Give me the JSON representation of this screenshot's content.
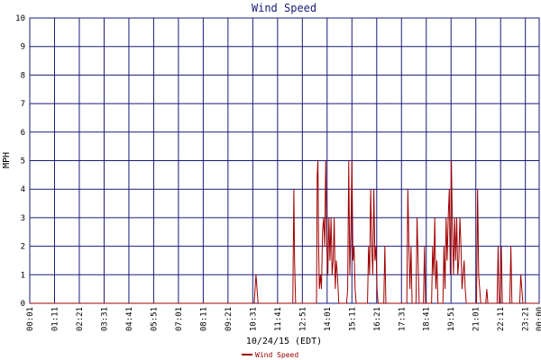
{
  "chart_data": {
    "type": "line",
    "title": "Wind Speed",
    "x_label": "10/24/15 (EDT)",
    "y_label": "MPH",
    "xlim": [
      1,
      1440
    ],
    "ylim": [
      0,
      10
    ],
    "grid": true,
    "legend": "bottom",
    "yticks": [
      0,
      1,
      2,
      3,
      4,
      5,
      6,
      7,
      8,
      9,
      10
    ],
    "xticks": [
      {
        "value": 1,
        "label": "00:01"
      },
      {
        "value": 71,
        "label": "01:11"
      },
      {
        "value": 141,
        "label": "02:21"
      },
      {
        "value": 211,
        "label": "03:31"
      },
      {
        "value": 281,
        "label": "04:41"
      },
      {
        "value": 351,
        "label": "05:51"
      },
      {
        "value": 421,
        "label": "07:01"
      },
      {
        "value": 491,
        "label": "08:11"
      },
      {
        "value": 561,
        "label": "09:21"
      },
      {
        "value": 631,
        "label": "10:31"
      },
      {
        "value": 701,
        "label": "11:41"
      },
      {
        "value": 771,
        "label": "12:51"
      },
      {
        "value": 841,
        "label": "14:01"
      },
      {
        "value": 911,
        "label": "15:11"
      },
      {
        "value": 981,
        "label": "16:21"
      },
      {
        "value": 1051,
        "label": "17:31"
      },
      {
        "value": 1121,
        "label": "18:41"
      },
      {
        "value": 1191,
        "label": "19:51"
      },
      {
        "value": 1261,
        "label": "21:01"
      },
      {
        "value": 1331,
        "label": "22:11"
      },
      {
        "value": 1401,
        "label": "23:21"
      },
      {
        "value": 1440,
        "label": "00:00"
      }
    ],
    "x": [
      1,
      635,
      640,
      643,
      646,
      744,
      747,
      749,
      752,
      811,
      813,
      815,
      817,
      819,
      822,
      825,
      828,
      831,
      834,
      837,
      840,
      843,
      846,
      849,
      852,
      855,
      858,
      861,
      864,
      867,
      870,
      874,
      877,
      896,
      899,
      902,
      905,
      908,
      911,
      914,
      917,
      920,
      923,
      926,
      955,
      958,
      961,
      964,
      967,
      970,
      973,
      976,
      979,
      982,
      985,
      988,
      1001,
      1004,
      1007,
      1066,
      1069,
      1072,
      1075,
      1078,
      1081,
      1092,
      1095,
      1098,
      1101,
      1104,
      1113,
      1116,
      1119,
      1136,
      1139,
      1142,
      1145,
      1148,
      1151,
      1154,
      1168,
      1171,
      1174,
      1177,
      1180,
      1183,
      1186,
      1189,
      1192,
      1195,
      1198,
      1201,
      1204,
      1207,
      1210,
      1213,
      1216,
      1219,
      1222,
      1225,
      1228,
      1231,
      1234,
      1237,
      1240,
      1243,
      1246,
      1249,
      1263,
      1266,
      1269,
      1272,
      1275,
      1289,
      1292,
      1295,
      1321,
      1324,
      1327,
      1330,
      1333,
      1336,
      1339,
      1357,
      1360,
      1363,
      1385,
      1388,
      1391,
      1394,
      1439
    ],
    "series": [
      {
        "name": "Wind Speed",
        "color": "#a00000",
        "values": [
          0,
          0,
          1,
          0.5,
          0,
          0,
          4,
          1.5,
          0,
          0,
          4.5,
          5,
          2,
          0.5,
          1,
          0.5,
          2.5,
          3,
          2,
          5,
          2,
          1,
          3,
          1.5,
          3,
          1,
          1.5,
          3,
          0.5,
          1.5,
          1,
          0,
          0,
          0,
          0.5,
          5,
          1,
          2.5,
          5,
          1.5,
          2,
          0.5,
          0,
          0,
          0,
          2,
          1,
          4,
          2,
          1,
          4,
          1.5,
          2,
          0.5,
          0,
          0,
          0,
          2,
          0,
          0,
          4,
          2,
          0.5,
          2,
          0,
          0,
          3,
          1.5,
          0,
          0,
          0,
          2,
          0,
          0,
          2,
          1,
          3,
          0.5,
          1.5,
          0,
          0,
          2,
          0.5,
          3,
          1.5,
          3,
          4,
          1,
          5,
          2.5,
          1,
          3,
          1.5,
          3,
          1,
          1.5,
          3,
          2,
          0.5,
          1,
          1.5,
          0.5,
          0,
          0,
          0,
          0,
          0,
          0,
          0,
          4,
          1,
          0.5,
          0,
          0,
          0.5,
          0,
          0,
          2,
          0,
          0,
          2,
          0,
          0,
          0,
          2,
          0,
          0,
          1,
          0.5,
          0,
          0
        ]
      }
    ]
  }
}
